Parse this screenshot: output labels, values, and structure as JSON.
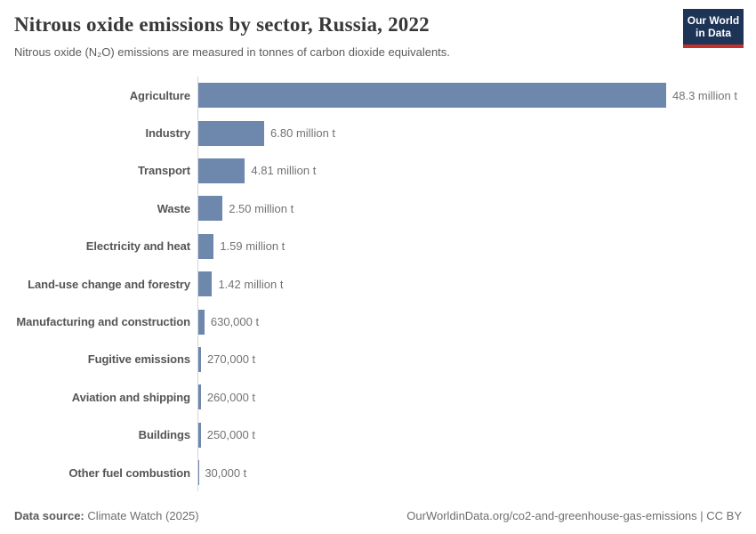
{
  "header": {
    "title": "Nitrous oxide emissions by sector, Russia, 2022",
    "subtitle": "Nitrous oxide (N₂O) emissions are measured in tonnes of carbon dioxide equivalents.",
    "logo": {
      "line1": "Our World",
      "line2": "in Data"
    }
  },
  "chart_data": {
    "type": "bar",
    "orientation": "horizontal",
    "title": "Nitrous oxide emissions by sector, Russia, 2022",
    "unit": "tonnes of carbon dioxide equivalents",
    "xlim_tonnes": [
      0,
      48300000
    ],
    "grid": false,
    "legend": "none",
    "categories": [
      "Agriculture",
      "Industry",
      "Transport",
      "Waste",
      "Electricity and heat",
      "Land-use change and forestry",
      "Manufacturing and construction",
      "Fugitive emissions",
      "Aviation and shipping",
      "Buildings",
      "Other fuel combustion"
    ],
    "values_tonnes": [
      48300000,
      6800000,
      4810000,
      2500000,
      1590000,
      1420000,
      630000,
      270000,
      260000,
      250000,
      30000
    ],
    "value_labels": [
      "48.3 million t",
      "6.80 million t",
      "4.81 million t",
      "2.50 million t",
      "1.59 million t",
      "1.42 million t",
      "630,000 t",
      "270,000 t",
      "260,000 t",
      "250,000 t",
      "30,000 t"
    ]
  },
  "footer": {
    "source_label": "Data source:",
    "source_value": "Climate Watch (2025)",
    "attribution": "OurWorldinData.org/co2-and-greenhouse-gas-emissions | CC BY"
  },
  "colors": {
    "bar": "#6d87ad",
    "axis_line": "#d6d6d6",
    "logo_bg": "#1d3456",
    "logo_accent": "#c5302b",
    "title_text": "#383838",
    "subtitle_text": "#5b5b5b",
    "category_label": "#555555",
    "value_label": "#737373"
  }
}
